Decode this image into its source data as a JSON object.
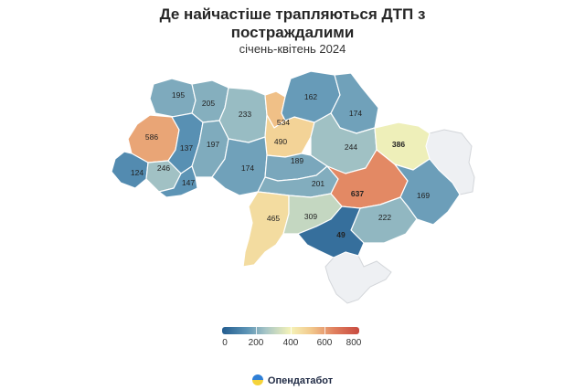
{
  "header": {
    "title": "Де найчастіше трапляються ДТП з постраждалими",
    "subtitle": "січень-квітень 2024"
  },
  "chart_data": {
    "type": "choropleth",
    "title": "Де найчастіше трапляються ДТП з постраждалими",
    "subtitle": "січень-квітень 2024",
    "scale": {
      "min": 0,
      "max": 800,
      "ticks": [
        0,
        200,
        400,
        600,
        800
      ]
    },
    "regions": [
      {
        "id": "volyn",
        "value": 195
      },
      {
        "id": "rivne",
        "value": 205
      },
      {
        "id": "zhytomyr",
        "value": 233
      },
      {
        "id": "kyiv-city",
        "value": 534
      },
      {
        "id": "kyiv-oblast",
        "value": 490
      },
      {
        "id": "chernihiv",
        "value": 162
      },
      {
        "id": "sumy",
        "value": 174
      },
      {
        "id": "lviv",
        "value": 586
      },
      {
        "id": "ternopil",
        "value": 137
      },
      {
        "id": "khmelnytskyi",
        "value": 197
      },
      {
        "id": "poltava",
        "value": 244
      },
      {
        "id": "kharkiv",
        "value": 386
      },
      {
        "id": "zakarpattia",
        "value": 124
      },
      {
        "id": "ivano-frankivsk",
        "value": 246
      },
      {
        "id": "chernivtsi",
        "value": 147
      },
      {
        "id": "vinnytsia",
        "value": 174
      },
      {
        "id": "cherkasy",
        "value": 189
      },
      {
        "id": "kirovohrad",
        "value": 201
      },
      {
        "id": "dnipropetrovsk",
        "value": 637
      },
      {
        "id": "donetsk",
        "value": 169
      },
      {
        "id": "odesa",
        "value": 465
      },
      {
        "id": "mykolaiv",
        "value": 309
      },
      {
        "id": "zaporizhzhia",
        "value": 222
      },
      {
        "id": "kherson",
        "value": 49
      },
      {
        "id": "luhansk",
        "value": null
      },
      {
        "id": "crimea",
        "value": null
      }
    ]
  },
  "legend": {
    "ticks": [
      "0",
      "200",
      "400",
      "600",
      "800"
    ]
  },
  "footer": {
    "brand": "Опендатабот"
  }
}
